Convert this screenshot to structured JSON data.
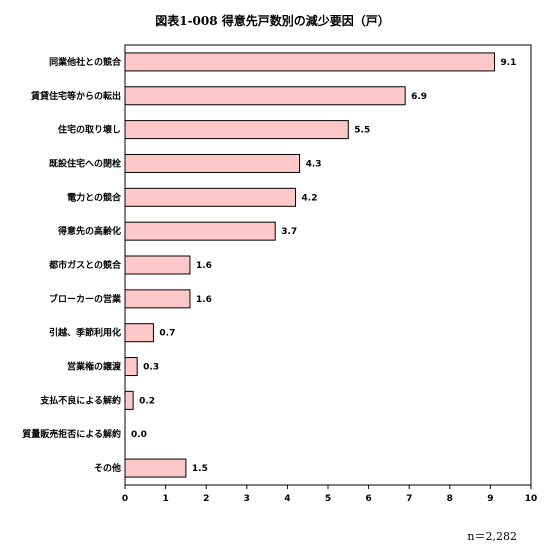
{
  "chart_data": {
    "type": "bar",
    "orientation": "horizontal",
    "title": "図表1-008 得意先戸数別の減少要因（戸）",
    "categories": [
      "同業他社との競合",
      "賃貸住宅等からの転出",
      "住宅の取り壊し",
      "既設住宅への閉栓",
      "電力との競合",
      "得意先の高齢化",
      "都市ガスとの競合",
      "ブローカーの営業",
      "引越、季節利用化",
      "営業権の譲渡",
      "支払不良による解約",
      "質量販売拒否による解約",
      "その他"
    ],
    "values": [
      9.1,
      6.9,
      5.5,
      4.3,
      4.2,
      3.7,
      1.6,
      1.6,
      0.7,
      0.3,
      0.2,
      0.0,
      1.5
    ],
    "value_labels": [
      "9.1",
      "6.9",
      "5.5",
      "4.3",
      "4.2",
      "3.7",
      "1.6",
      "1.6",
      "0.7",
      "0.3",
      "0.2",
      "0.0",
      "1.5"
    ],
    "xlim": [
      0,
      10
    ],
    "xticks": [
      0,
      1,
      2,
      3,
      4,
      5,
      6,
      7,
      8,
      9,
      10
    ],
    "grid": false,
    "bar_color": "#FFC8C8",
    "bar_edge_color": "#000000"
  },
  "note": "n＝2,282"
}
